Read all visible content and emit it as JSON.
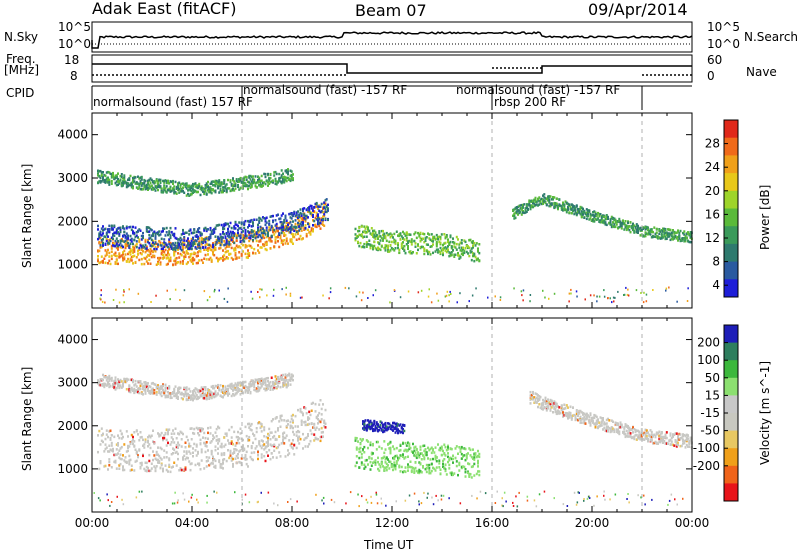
{
  "header": {
    "site": "Adak East (fitACF)",
    "beam": "Beam 07",
    "date": "09/Apr/2014"
  },
  "left_labels": {
    "nsky": "N.Sky",
    "freq": "Freq.",
    "freq_unit": "[MHz]",
    "cpid": "CPID"
  },
  "right_labels": {
    "nsearch": "N.Search",
    "nave": "Nave"
  },
  "noise_axis": {
    "left_top": "10^5",
    "left_bottom": "10^0",
    "right_top": "10^5",
    "right_bottom": "10^0"
  },
  "freq_axis": {
    "ticks": [
      "18",
      "8"
    ]
  },
  "nave_axis": {
    "ticks": [
      "60",
      "0"
    ]
  },
  "cpid_segments": [
    {
      "label": "normalsound (fast) 157 RF"
    },
    {
      "label": "normalsound (fast) -157 RF"
    },
    {
      "label": "normalsound (fast) -157 RF"
    },
    {
      "label": "rbsp 200 RF"
    }
  ],
  "colors": {
    "power": [
      "#1e1ed8",
      "#2a5aa0",
      "#2e7a6e",
      "#3a9a5a",
      "#5aba3a",
      "#9ed42a",
      "#e8c81a",
      "#f0a01a",
      "#f06a1a",
      "#e0281a"
    ],
    "velocity": [
      "#e8141a",
      "#f0641a",
      "#f0a01a",
      "#e8c862",
      "#c8c8c0",
      "#c8c8c8",
      "#8ce070",
      "#3cb83c",
      "#2e7e5e",
      "#1e1eb8"
    ],
    "grey": "#c8c8c4"
  },
  "chart_data": [
    {
      "type": "heatmap",
      "title": "Power",
      "xlabel": "Time UT",
      "ylabel": "Slant Range [km]",
      "xlim": [
        "00:00",
        "24:00"
      ],
      "ylim": [
        0,
        4500
      ],
      "x_ticks": [
        "00:00",
        "04:00",
        "08:00",
        "12:00",
        "16:00",
        "20:00",
        "00:00"
      ],
      "y_ticks": [
        1000,
        2000,
        3000,
        4000
      ],
      "colorbar": {
        "label": "Power [dB]",
        "ticks": [
          4,
          8,
          12,
          16,
          20,
          24,
          28
        ]
      },
      "bands": [
        {
          "t": [
            0.2,
            3,
            6,
            8,
            9.3
          ],
          "r_center": [
            1350,
            1300,
            1450,
            1800,
            2200
          ],
          "width": 300,
          "level": 24
        },
        {
          "t": [
            0.2,
            2,
            4,
            6,
            8,
            9.4
          ],
          "r_center": [
            1700,
            1650,
            1600,
            1800,
            2000,
            2300
          ],
          "width": 250,
          "level": 8
        },
        {
          "t": [
            0.2,
            2,
            4,
            6,
            8
          ],
          "r_center": [
            3050,
            2900,
            2750,
            2900,
            3100
          ],
          "width": 150,
          "level": 12
        },
        {
          "t": [
            10.5,
            12,
            14,
            15.5
          ],
          "r_center": [
            1700,
            1550,
            1500,
            1300
          ],
          "width": 250,
          "level": 16
        },
        {
          "t": [
            16.8,
            18,
            20,
            22,
            24
          ],
          "r_center": [
            2200,
            2550,
            2150,
            1800,
            1650
          ],
          "width": 120,
          "level": 14
        }
      ]
    },
    {
      "type": "heatmap",
      "title": "Velocity",
      "xlabel": "Time UT",
      "ylabel": "Slant Range [km]",
      "xlim": [
        "00:00",
        "24:00"
      ],
      "ylim": [
        0,
        4500
      ],
      "x_ticks": [
        "00:00",
        "04:00",
        "08:00",
        "12:00",
        "16:00",
        "20:00",
        "00:00"
      ],
      "y_ticks": [
        1000,
        2000,
        3000,
        4000
      ],
      "colorbar": {
        "label": "Velocity [m s^-1]",
        "ticks": [
          200,
          100,
          50,
          15,
          -15,
          -50,
          -100,
          -200
        ]
      },
      "bands": [
        {
          "t": [
            0.2,
            3,
            6,
            8,
            9.3
          ],
          "r_center": [
            1500,
            1450,
            1550,
            1850,
            2200
          ],
          "width": 500,
          "level": 0
        },
        {
          "t": [
            0.2,
            2,
            4,
            6,
            8
          ],
          "r_center": [
            3100,
            2900,
            2750,
            2900,
            3100
          ],
          "width": 150,
          "level": 0
        },
        {
          "t": [
            10.5,
            12,
            14,
            15.5
          ],
          "r_center": [
            1400,
            1300,
            1250,
            1150
          ],
          "width": 350,
          "level": 40
        },
        {
          "t": [
            10.8,
            12.5
          ],
          "r_center": [
            2050,
            1950
          ],
          "width": 120,
          "level": 200
        },
        {
          "t": [
            17.5,
            18,
            20,
            22,
            24
          ],
          "r_center": [
            2700,
            2550,
            2150,
            1800,
            1650
          ],
          "width": 150,
          "level": 0
        }
      ]
    }
  ]
}
